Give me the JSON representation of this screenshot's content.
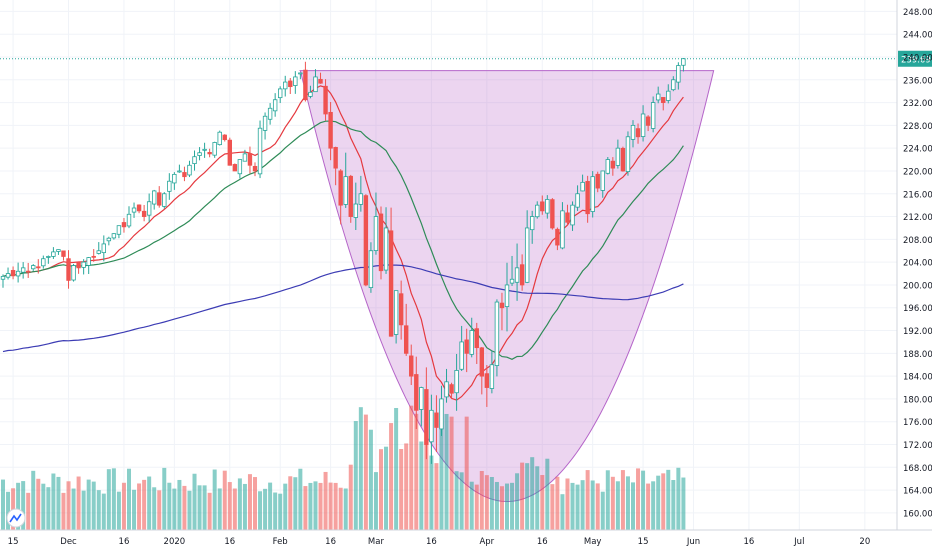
{
  "chart_data": {
    "type": "candlestick",
    "title": "",
    "xlabel": "",
    "ylabel": "",
    "price_axis": {
      "ticks": [
        "248.00",
        "244.00",
        "240.00",
        "236.00",
        "232.00",
        "228.00",
        "224.00",
        "220.00",
        "216.00",
        "212.00",
        "208.00",
        "204.00",
        "200.00",
        "196.00",
        "192.00",
        "188.00",
        "184.00",
        "180.00",
        "176.00",
        "172.00",
        "168.00",
        "164.00",
        "160.00"
      ],
      "range": [
        157,
        250
      ]
    },
    "time_axis": {
      "labels": [
        {
          "text": "15",
          "bar": 2
        },
        {
          "text": "Dec",
          "bar": 13
        },
        {
          "text": "16",
          "bar": 24
        },
        {
          "text": "2020",
          "bar": 34
        },
        {
          "text": "16",
          "bar": 45
        },
        {
          "text": "Feb",
          "bar": 55
        },
        {
          "text": "16",
          "bar": 65
        },
        {
          "text": "Mar",
          "bar": 74
        },
        {
          "text": "16",
          "bar": 85
        },
        {
          "text": "Apr",
          "bar": 96
        },
        {
          "text": "16",
          "bar": 107
        },
        {
          "text": "May",
          "bar": 117
        },
        {
          "text": "15",
          "bar": 127
        },
        {
          "text": "Jun",
          "bar": 137
        },
        {
          "text": "16",
          "bar": 148
        },
        {
          "text": "Jul",
          "bar": 158
        },
        {
          "text": "20",
          "bar": 171
        }
      ]
    },
    "last_price": {
      "value": 239.69,
      "label": "239.69"
    },
    "bars_close": [
      201.5,
      202.0,
      201.6,
      202.4,
      203.0,
      202.4,
      203.4,
      203.0,
      204.6,
      205.0,
      205.8,
      206.2,
      205.0,
      200.8,
      203.4,
      203.0,
      204.0,
      204.8,
      205.0,
      206.0,
      207.2,
      208.2,
      209.0,
      210.4,
      210.2,
      212.4,
      213.5,
      213.0,
      212.0,
      214.6,
      216.5,
      214.0,
      216.0,
      218.2,
      219.4,
      220.0,
      219.0,
      221.0,
      222.5,
      223.2,
      223.8,
      223.0,
      225.0,
      226.8,
      225.5,
      221.0,
      220.0,
      222.0,
      223.0,
      221.0,
      220.0,
      227.5,
      229.6,
      231.0,
      232.5,
      234.4,
      235.6,
      234.8,
      236.5,
      237.2,
      232.5,
      233.8,
      236.5,
      235.4,
      230.0,
      224.0,
      220.5,
      214.0,
      219.0,
      212.0,
      214.2,
      216.0,
      200.0,
      206.0,
      212.0,
      202.5,
      210.0,
      191.0,
      199.0,
      193.0,
      188.0,
      184.0,
      178.0,
      182.0,
      172.0,
      178.0,
      175.0,
      180.0,
      183.0,
      181.0,
      185.0,
      190.0,
      188.0,
      192.0,
      189.0,
      184.0,
      182.0,
      186.0,
      197.0,
      196.0,
      200.0,
      201.0,
      203.0,
      200.0,
      210.0,
      212.0,
      214.0,
      213.0,
      215.0,
      210.0,
      207.0,
      213.0,
      211.0,
      214.0,
      216.0,
      218.0,
      212.5,
      219.0,
      217.0,
      220.0,
      222.0,
      220.5,
      224.0,
      220.0,
      226.0,
      228.0,
      226.0,
      230.0,
      228.0,
      232.0,
      233.5,
      232.0,
      234.0,
      236.0,
      238.5,
      239.7
    ]
  }
}
